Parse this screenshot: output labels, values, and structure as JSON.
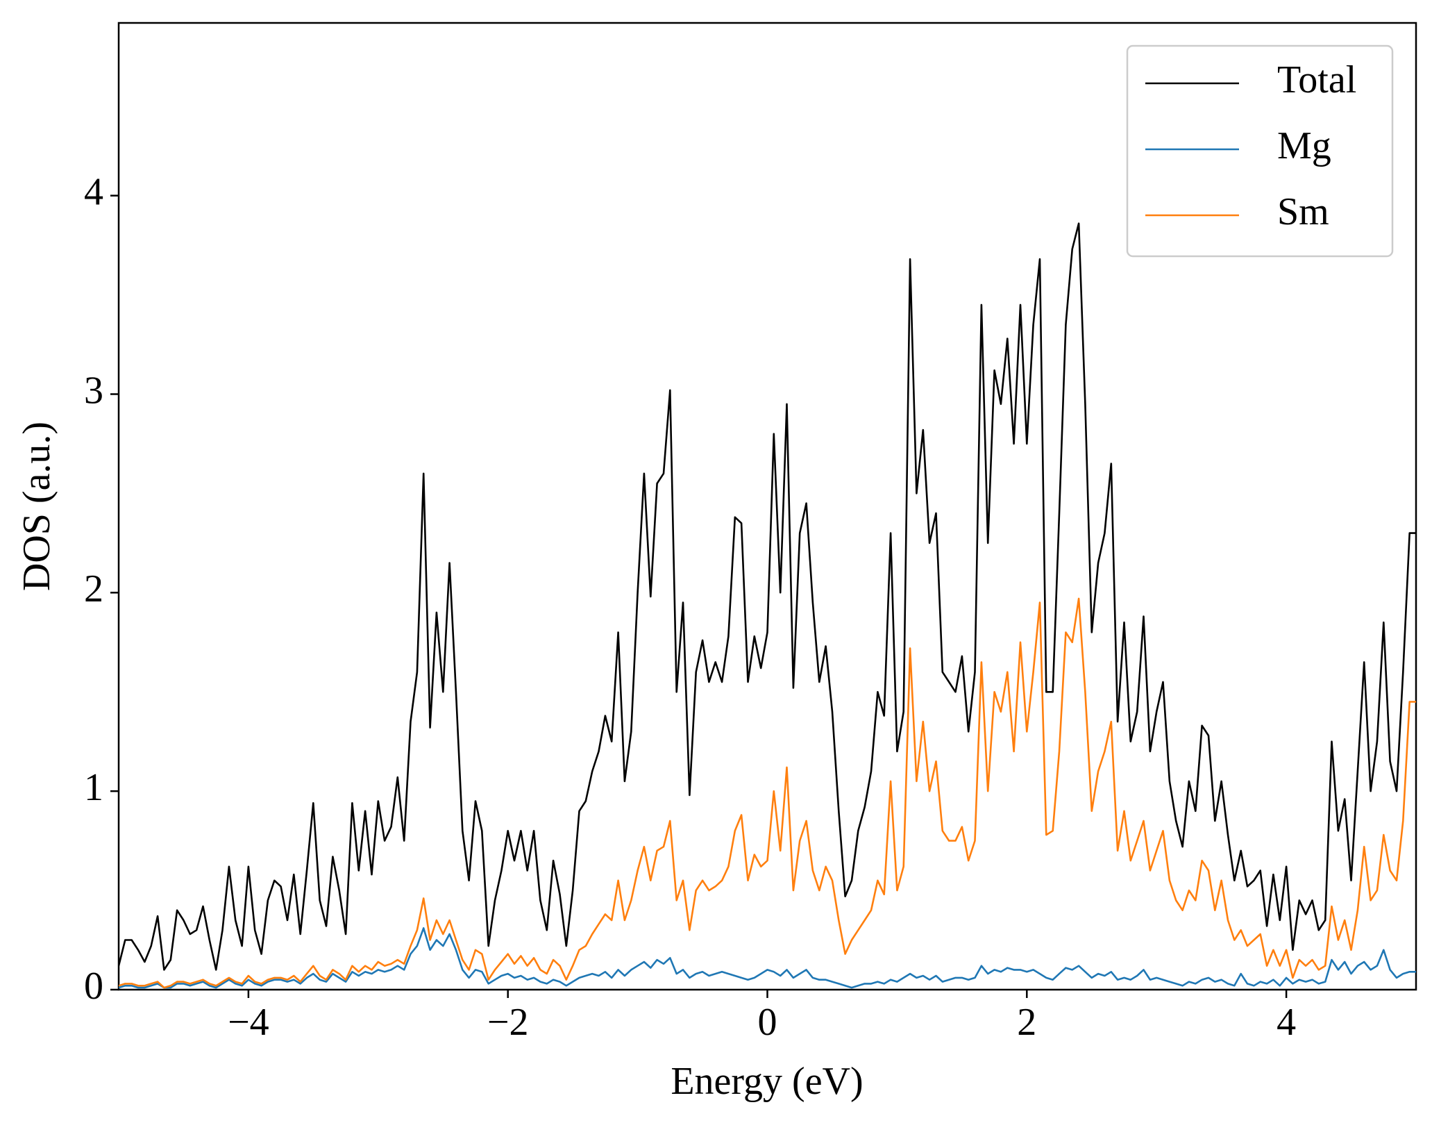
{
  "chart_data": {
    "type": "line",
    "xlabel": "Energy (eV)",
    "ylabel": "DOS (a.u.)",
    "x": [
      -5,
      -4.95,
      -4.9,
      -4.85,
      -4.8,
      -4.75,
      -4.7,
      -4.65,
      -4.6,
      -4.55,
      -4.5,
      -4.45,
      -4.4,
      -4.35,
      -4.3,
      -4.25,
      -4.2,
      -4.15,
      -4.1,
      -4.05,
      -4,
      -3.95,
      -3.9,
      -3.85,
      -3.8,
      -3.75,
      -3.7,
      -3.65,
      -3.6,
      -3.55,
      -3.5,
      -3.45,
      -3.4,
      -3.35,
      -3.3,
      -3.25,
      -3.2,
      -3.15,
      -3.1,
      -3.05,
      -3,
      -2.95,
      -2.9,
      -2.85,
      -2.8,
      -2.75,
      -2.7,
      -2.65,
      -2.6,
      -2.55,
      -2.5,
      -2.45,
      -2.4,
      -2.35,
      -2.3,
      -2.25,
      -2.2,
      -2.15,
      -2.1,
      -2.05,
      -2,
      -1.95,
      -1.9,
      -1.85,
      -1.8,
      -1.75,
      -1.7,
      -1.65,
      -1.6,
      -1.55,
      -1.5,
      -1.45,
      -1.4,
      -1.35,
      -1.3,
      -1.25,
      -1.2,
      -1.15,
      -1.1,
      -1.05,
      -1,
      -0.95,
      -0.9,
      -0.85,
      -0.8,
      -0.75,
      -0.7,
      -0.65,
      -0.6,
      -0.55,
      -0.5,
      -0.45,
      -0.4,
      -0.35,
      -0.3,
      -0.25,
      -0.2,
      -0.15,
      -0.1,
      -0.05,
      0,
      0.05,
      0.1,
      0.15,
      0.2,
      0.25,
      0.3,
      0.35,
      0.4,
      0.45,
      0.5,
      0.55,
      0.6,
      0.65,
      0.7,
      0.75,
      0.8,
      0.85,
      0.9,
      0.95,
      1,
      1.05,
      1.1,
      1.15,
      1.2,
      1.25,
      1.3,
      1.35,
      1.4,
      1.45,
      1.5,
      1.55,
      1.6,
      1.65,
      1.7,
      1.75,
      1.8,
      1.85,
      1.9,
      1.95,
      2,
      2.05,
      2.1,
      2.15,
      2.2,
      2.25,
      2.3,
      2.35,
      2.4,
      2.45,
      2.5,
      2.55,
      2.6,
      2.65,
      2.7,
      2.75,
      2.8,
      2.85,
      2.9,
      2.95,
      3,
      3.05,
      3.1,
      3.15,
      3.2,
      3.25,
      3.3,
      3.35,
      3.4,
      3.45,
      3.5,
      3.55,
      3.6,
      3.65,
      3.7,
      3.75,
      3.8,
      3.85,
      3.9,
      3.95,
      4,
      4.05,
      4.1,
      4.15,
      4.2,
      4.25,
      4.3,
      4.35,
      4.4,
      4.45,
      4.5,
      4.55,
      4.6,
      4.65,
      4.7,
      4.75,
      4.8,
      4.85,
      4.9,
      4.95,
      5
    ],
    "series": [
      {
        "name": "Total",
        "color": "#000000",
        "values": [
          0.12,
          0.25,
          0.25,
          0.2,
          0.14,
          0.22,
          0.37,
          0.1,
          0.15,
          0.4,
          0.35,
          0.28,
          0.3,
          0.42,
          0.25,
          0.1,
          0.3,
          0.62,
          0.35,
          0.22,
          0.62,
          0.3,
          0.18,
          0.45,
          0.55,
          0.52,
          0.35,
          0.58,
          0.28,
          0.6,
          0.94,
          0.45,
          0.32,
          0.67,
          0.5,
          0.28,
          0.94,
          0.6,
          0.9,
          0.58,
          0.95,
          0.75,
          0.82,
          1.07,
          0.75,
          1.35,
          1.6,
          2.6,
          1.32,
          1.9,
          1.5,
          2.15,
          1.5,
          0.8,
          0.55,
          0.95,
          0.8,
          0.22,
          0.45,
          0.6,
          0.8,
          0.65,
          0.8,
          0.6,
          0.8,
          0.45,
          0.3,
          0.65,
          0.48,
          0.22,
          0.5,
          0.9,
          0.95,
          1.1,
          1.2,
          1.38,
          1.25,
          1.8,
          1.05,
          1.3,
          2.0,
          2.6,
          1.98,
          2.55,
          2.6,
          3.02,
          1.5,
          1.95,
          0.98,
          1.6,
          1.76,
          1.55,
          1.65,
          1.55,
          1.78,
          2.38,
          2.35,
          1.55,
          1.78,
          1.62,
          1.8,
          2.8,
          2.0,
          2.95,
          1.52,
          2.3,
          2.45,
          1.95,
          1.55,
          1.73,
          1.4,
          0.9,
          0.47,
          0.55,
          0.8,
          0.92,
          1.1,
          1.5,
          1.38,
          2.3,
          1.2,
          1.4,
          3.68,
          2.5,
          2.82,
          2.25,
          2.4,
          1.6,
          1.55,
          1.5,
          1.68,
          1.3,
          1.6,
          3.45,
          2.25,
          3.12,
          2.95,
          3.28,
          2.75,
          3.45,
          2.75,
          3.35,
          3.68,
          1.5,
          1.5,
          2.4,
          3.35,
          3.73,
          3.86,
          2.95,
          1.8,
          2.15,
          2.3,
          2.65,
          1.35,
          1.85,
          1.25,
          1.4,
          1.88,
          1.2,
          1.4,
          1.55,
          1.05,
          0.85,
          0.72,
          1.05,
          0.9,
          1.33,
          1.28,
          0.85,
          1.05,
          0.78,
          0.55,
          0.7,
          0.52,
          0.55,
          0.6,
          0.32,
          0.58,
          0.35,
          0.62,
          0.2,
          0.45,
          0.38,
          0.45,
          0.3,
          0.35,
          1.25,
          0.8,
          0.96,
          0.55,
          1.1,
          1.65,
          1.0,
          1.25,
          1.85,
          1.15,
          1.0,
          1.6,
          2.3,
          2.3
        ]
      },
      {
        "name": "Mg",
        "color": "#1f77b4",
        "values": [
          0.01,
          0.02,
          0.02,
          0.01,
          0.01,
          0.02,
          0.03,
          0.01,
          0.01,
          0.03,
          0.03,
          0.02,
          0.03,
          0.04,
          0.02,
          0.01,
          0.03,
          0.05,
          0.03,
          0.02,
          0.05,
          0.03,
          0.02,
          0.04,
          0.05,
          0.05,
          0.04,
          0.05,
          0.03,
          0.06,
          0.08,
          0.05,
          0.04,
          0.08,
          0.06,
          0.04,
          0.09,
          0.07,
          0.09,
          0.08,
          0.1,
          0.09,
          0.1,
          0.12,
          0.1,
          0.18,
          0.22,
          0.31,
          0.2,
          0.25,
          0.22,
          0.28,
          0.2,
          0.1,
          0.06,
          0.1,
          0.09,
          0.03,
          0.05,
          0.07,
          0.08,
          0.06,
          0.07,
          0.05,
          0.06,
          0.04,
          0.03,
          0.05,
          0.04,
          0.02,
          0.04,
          0.06,
          0.07,
          0.08,
          0.07,
          0.09,
          0.06,
          0.1,
          0.07,
          0.1,
          0.12,
          0.14,
          0.11,
          0.15,
          0.13,
          0.16,
          0.08,
          0.1,
          0.06,
          0.08,
          0.09,
          0.07,
          0.08,
          0.09,
          0.08,
          0.07,
          0.06,
          0.05,
          0.06,
          0.08,
          0.1,
          0.09,
          0.07,
          0.1,
          0.06,
          0.08,
          0.1,
          0.06,
          0.05,
          0.05,
          0.04,
          0.03,
          0.02,
          0.01,
          0.02,
          0.03,
          0.03,
          0.04,
          0.03,
          0.05,
          0.04,
          0.06,
          0.08,
          0.06,
          0.07,
          0.05,
          0.07,
          0.04,
          0.05,
          0.06,
          0.06,
          0.05,
          0.06,
          0.12,
          0.08,
          0.1,
          0.09,
          0.11,
          0.1,
          0.1,
          0.09,
          0.1,
          0.08,
          0.06,
          0.05,
          0.08,
          0.11,
          0.1,
          0.12,
          0.09,
          0.06,
          0.08,
          0.07,
          0.09,
          0.05,
          0.06,
          0.05,
          0.07,
          0.1,
          0.05,
          0.06,
          0.05,
          0.04,
          0.03,
          0.02,
          0.04,
          0.03,
          0.05,
          0.06,
          0.04,
          0.05,
          0.03,
          0.02,
          0.08,
          0.03,
          0.02,
          0.04,
          0.03,
          0.05,
          0.02,
          0.06,
          0.03,
          0.05,
          0.04,
          0.05,
          0.03,
          0.04,
          0.15,
          0.1,
          0.14,
          0.08,
          0.12,
          0.14,
          0.1,
          0.12,
          0.2,
          0.1,
          0.06,
          0.08,
          0.09,
          0.09
        ]
      },
      {
        "name": "Sm",
        "color": "#ff7f0e",
        "values": [
          0.02,
          0.03,
          0.03,
          0.02,
          0.02,
          0.03,
          0.04,
          0.01,
          0.02,
          0.04,
          0.04,
          0.03,
          0.04,
          0.05,
          0.03,
          0.02,
          0.04,
          0.06,
          0.04,
          0.03,
          0.07,
          0.04,
          0.03,
          0.05,
          0.06,
          0.06,
          0.05,
          0.07,
          0.04,
          0.08,
          0.12,
          0.07,
          0.05,
          0.1,
          0.08,
          0.05,
          0.12,
          0.09,
          0.12,
          0.1,
          0.14,
          0.12,
          0.13,
          0.15,
          0.13,
          0.22,
          0.3,
          0.46,
          0.25,
          0.35,
          0.28,
          0.35,
          0.25,
          0.15,
          0.1,
          0.2,
          0.18,
          0.05,
          0.1,
          0.14,
          0.18,
          0.13,
          0.17,
          0.12,
          0.16,
          0.1,
          0.08,
          0.15,
          0.12,
          0.05,
          0.12,
          0.2,
          0.22,
          0.28,
          0.33,
          0.38,
          0.35,
          0.55,
          0.35,
          0.45,
          0.6,
          0.72,
          0.55,
          0.7,
          0.72,
          0.85,
          0.45,
          0.55,
          0.3,
          0.5,
          0.55,
          0.5,
          0.52,
          0.55,
          0.62,
          0.8,
          0.88,
          0.55,
          0.68,
          0.62,
          0.65,
          1.0,
          0.7,
          1.12,
          0.5,
          0.75,
          0.85,
          0.6,
          0.5,
          0.62,
          0.55,
          0.35,
          0.18,
          0.25,
          0.3,
          0.35,
          0.4,
          0.55,
          0.48,
          1.05,
          0.5,
          0.62,
          1.72,
          1.05,
          1.35,
          1.0,
          1.15,
          0.8,
          0.75,
          0.75,
          0.82,
          0.65,
          0.75,
          1.65,
          1.0,
          1.5,
          1.4,
          1.6,
          1.2,
          1.75,
          1.3,
          1.6,
          1.95,
          0.78,
          0.8,
          1.2,
          1.8,
          1.75,
          1.97,
          1.5,
          0.9,
          1.1,
          1.2,
          1.35,
          0.7,
          0.9,
          0.65,
          0.75,
          0.85,
          0.6,
          0.7,
          0.8,
          0.55,
          0.45,
          0.4,
          0.5,
          0.45,
          0.65,
          0.6,
          0.4,
          0.55,
          0.35,
          0.25,
          0.3,
          0.22,
          0.25,
          0.28,
          0.12,
          0.2,
          0.12,
          0.2,
          0.06,
          0.15,
          0.12,
          0.15,
          0.1,
          0.12,
          0.42,
          0.25,
          0.35,
          0.2,
          0.4,
          0.72,
          0.45,
          0.5,
          0.78,
          0.6,
          0.55,
          0.85,
          1.45,
          1.45
        ]
      }
    ],
    "xlim": [
      -5,
      5
    ],
    "ylim": [
      0,
      4.87
    ],
    "xticks": [
      {
        "value": -4,
        "label": "−4"
      },
      {
        "value": -2,
        "label": "−2"
      },
      0,
      2,
      4
    ],
    "yticks": [
      0,
      1,
      2,
      3,
      4
    ],
    "legend": "upper right",
    "grid": false
  }
}
